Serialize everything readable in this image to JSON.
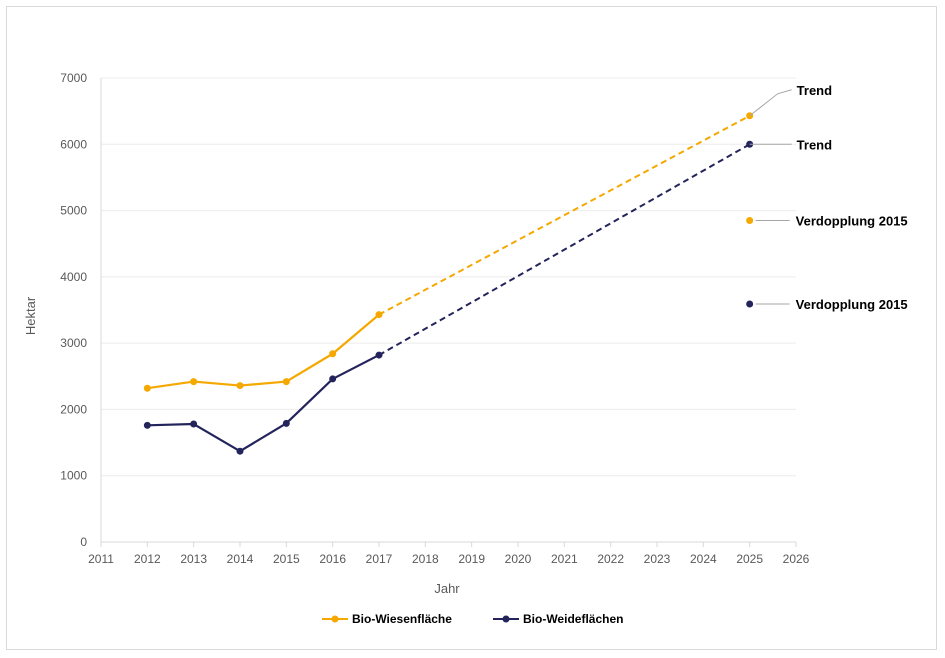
{
  "chart_data": {
    "type": "line",
    "title": "",
    "xlabel": "Jahr",
    "ylabel": "Hektar",
    "xlim": [
      2011,
      2026
    ],
    "ylim": [
      0,
      7000
    ],
    "x_ticks": [
      "2011",
      "2012",
      "2013",
      "2014",
      "2015",
      "2016",
      "2017",
      "2018",
      "2019",
      "2020",
      "2021",
      "2022",
      "2023",
      "2024",
      "2025",
      "2026"
    ],
    "y_ticks": [
      "0",
      "1000",
      "2000",
      "3000",
      "4000",
      "5000",
      "6000",
      "7000"
    ],
    "grid": true,
    "legend_position": "bottom",
    "series": [
      {
        "name": "Bio-Wiesenfläche",
        "color": "#f5a800",
        "x": [
          2012,
          2013,
          2014,
          2015,
          2016,
          2017
        ],
        "values": [
          2320,
          2420,
          2360,
          2420,
          2840,
          3430
        ]
      },
      {
        "name": "Bio-Weideflächen",
        "color": "#24245c",
        "x": [
          2012,
          2013,
          2014,
          2015,
          2016,
          2017
        ],
        "values": [
          1760,
          1780,
          1370,
          1790,
          2460,
          2820
        ]
      }
    ],
    "trends": [
      {
        "series": "Bio-Wiesenfläche",
        "color": "#f5a800",
        "from": [
          2017,
          3430
        ],
        "to": [
          2025,
          6430
        ],
        "label": "Trend"
      },
      {
        "series": "Bio-Weideflächen",
        "color": "#24245c",
        "from": [
          2017,
          2820
        ],
        "to": [
          2025,
          6000
        ],
        "label": "Trend"
      }
    ],
    "points": [
      {
        "series": "Bio-Wiesenfläche",
        "color": "#f5a800",
        "x": 2025,
        "y": 4850,
        "label": "Verdopplung 2015"
      },
      {
        "series": "Bio-Weideflächen",
        "color": "#24245c",
        "x": 2025,
        "y": 3590,
        "label": "Verdopplung 2015"
      }
    ]
  }
}
